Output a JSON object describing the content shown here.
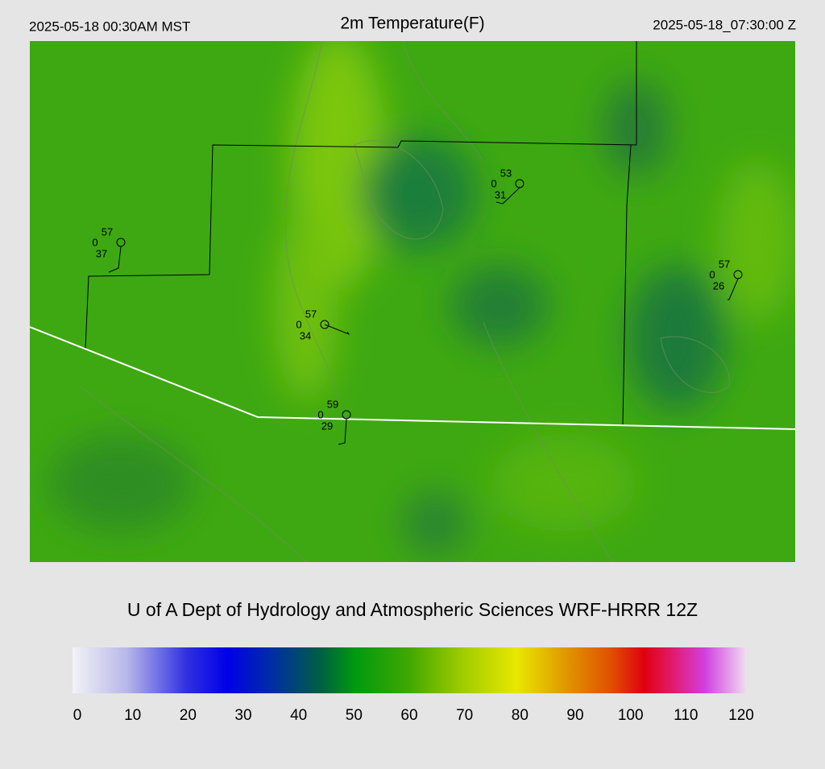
{
  "header": {
    "local_time": "2025-05-18 00:30AM MST",
    "title": "2m Temperature(F)",
    "utc_time": "2025-05-18_07:30:00 Z"
  },
  "stations": [
    {
      "top": 57,
      "middle": 0,
      "bottom": 37
    },
    {
      "top": 53,
      "middle": 0,
      "bottom": 31
    },
    {
      "top": 57,
      "middle": 0,
      "bottom": 26
    },
    {
      "top": 57,
      "middle": 0,
      "bottom": 34
    },
    {
      "top": 59,
      "middle": 0,
      "bottom": 29
    }
  ],
  "footer": "U of A Dept of Hydrology and Atmospheric Sciences WRF-HRRR 12Z",
  "colorbar": {
    "range": [
      0,
      120
    ],
    "ticks": [
      0,
      10,
      20,
      30,
      40,
      50,
      60,
      70,
      80,
      90,
      100,
      110,
      120
    ]
  }
}
